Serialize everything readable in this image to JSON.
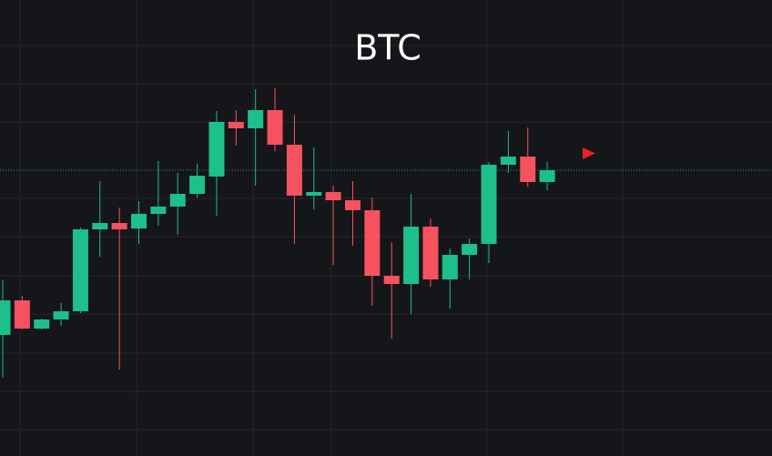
{
  "chart_data": {
    "type": "candlestick",
    "title": "BTC",
    "ylim": [
      0,
      501
    ],
    "up_color": "#1dbf8b",
    "down_color": "#f7525f",
    "open": [
      133,
      171,
      140,
      150,
      159,
      249,
      256,
      250,
      266,
      274,
      288,
      307,
      367,
      360,
      380,
      342,
      286,
      290,
      281,
      270,
      198,
      189,
      252,
      194,
      221,
      233,
      320,
      329,
      301
    ],
    "close": [
      171,
      140,
      150,
      159,
      249,
      256,
      249,
      266,
      274,
      288,
      308,
      367,
      360,
      380,
      342,
      286,
      290,
      281,
      270,
      198,
      189,
      252,
      194,
      221,
      233,
      320,
      329,
      301,
      314
    ],
    "high": [
      194,
      176,
      151,
      168,
      251,
      302,
      273,
      280,
      324,
      311,
      321,
      379,
      380,
      403,
      404,
      375,
      339,
      297,
      302,
      284,
      235,
      288,
      261,
      228,
      239,
      323,
      357,
      361,
      323
    ],
    "low": [
      86,
      139,
      139,
      143,
      157,
      219,
      95,
      233,
      253,
      243,
      284,
      264,
      341,
      297,
      335,
      233,
      271,
      210,
      231,
      165,
      129,
      156,
      186,
      162,
      194,
      212,
      311,
      296,
      292
    ]
  }
}
